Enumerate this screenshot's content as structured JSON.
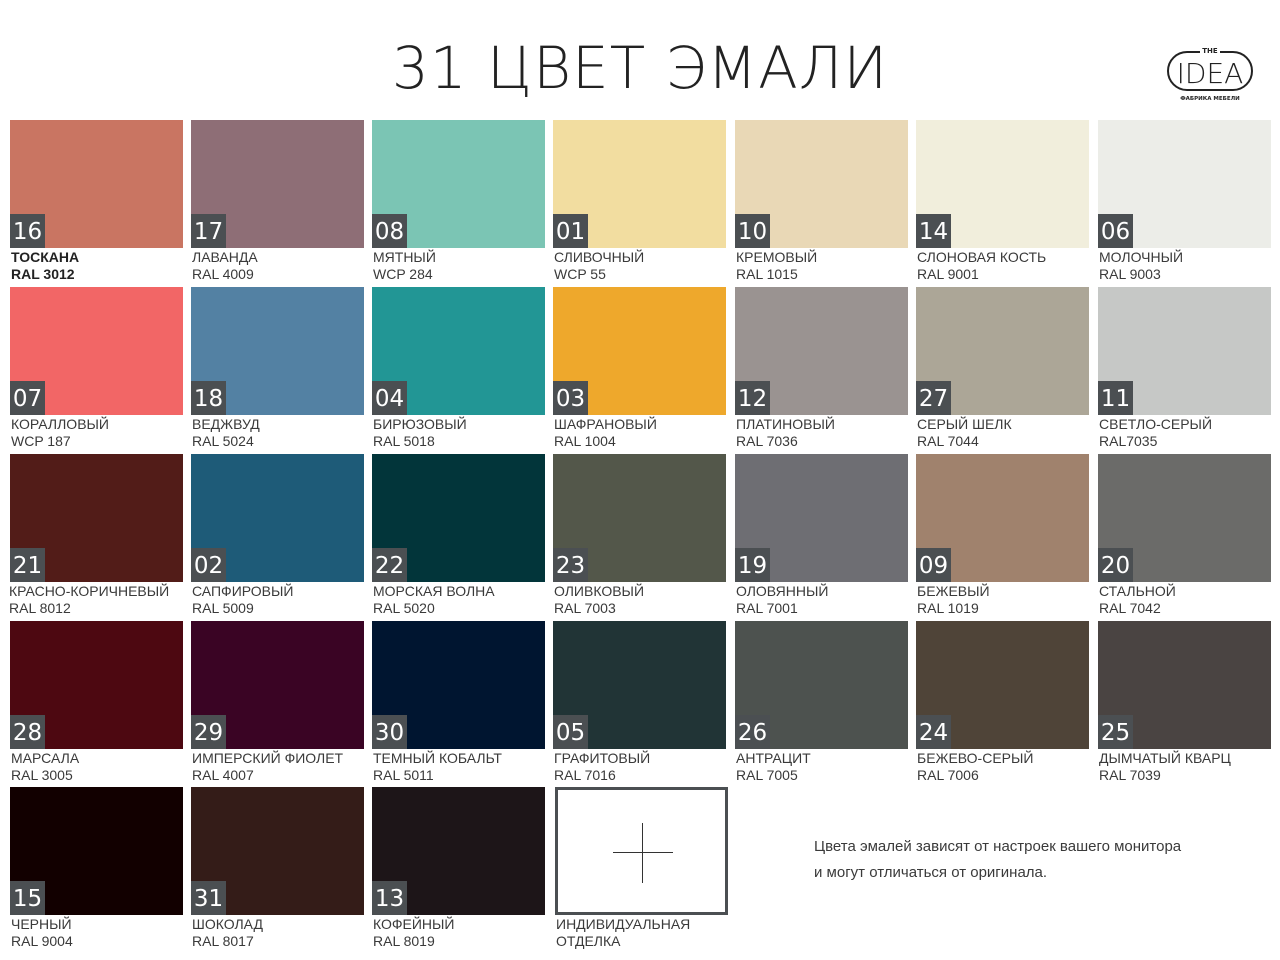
{
  "title": "31 ЦВЕТ ЭМАЛИ",
  "logo": {
    "top": "THE",
    "main": "IDEA",
    "sub": "ФАБРИКА МЕБЕЛИ"
  },
  "swatches": [
    {
      "num": "16",
      "name": "ТОСКАНА",
      "code": "RAL 3012",
      "color": "#c97562"
    },
    {
      "num": "17",
      "name": "ЛАВАНДА",
      "code": "RAL 4009",
      "color": "#8e6e76"
    },
    {
      "num": "08",
      "name": "МЯТНЫЙ",
      "code": "WCP 284",
      "color": "#7bc5b4"
    },
    {
      "num": "01",
      "name": "СЛИВОЧНЫЙ",
      "code": "WCP 55",
      "color": "#f2dda0"
    },
    {
      "num": "10",
      "name": "КРЕМОВЫЙ",
      "code": "RAL 1015",
      "color": "#e9d8b6"
    },
    {
      "num": "14",
      "name": "СЛОНОВАЯ КОСТЬ",
      "code": "RAL 9001",
      "color": "#f1eedc"
    },
    {
      "num": "06",
      "name": "МОЛОЧНЫЙ",
      "code": "RAL 9003",
      "color": "#ecede8"
    },
    {
      "num": "07",
      "name": "КОРАЛЛОВЫЙ",
      "code": "WCP 187",
      "color": "#f26666"
    },
    {
      "num": "18",
      "name": "ВЕДЖВУД",
      "code": "RAL 5024",
      "color": "#5381a3"
    },
    {
      "num": "04",
      "name": "БИРЮЗОВЫЙ",
      "code": "RAL 5018",
      "color": "#229695"
    },
    {
      "num": "03",
      "name": "ШАФРАНОВЫЙ",
      "code": "RAL 1004",
      "color": "#eea82c"
    },
    {
      "num": "12",
      "name": "ПЛАТИНОВЫЙ",
      "code": "RAL 7036",
      "color": "#9a9391"
    },
    {
      "num": "27",
      "name": "СЕРЫЙ ШЕЛК",
      "code": "RAL 7044",
      "color": "#aca697"
    },
    {
      "num": "11",
      "name": "СВЕТЛО-СЕРЫЙ",
      "code": "RAL7035",
      "color": "#c6c8c6"
    },
    {
      "num": "21",
      "name": "КРАСНО-КОРИЧНЕВЫЙ",
      "code": "RAL 8012",
      "color": "#521c18"
    },
    {
      "num": "02",
      "name": "САПФИРОВЫЙ",
      "code": "RAL 5009",
      "color": "#1e5b78"
    },
    {
      "num": "22",
      "name": "МОРСКАЯ ВОЛНА",
      "code": "RAL 5020",
      "color": "#02353a"
    },
    {
      "num": "23",
      "name": "ОЛИВКОВЫЙ",
      "code": "RAL 7003",
      "color": "#53574a"
    },
    {
      "num": "19",
      "name": "ОЛОВЯННЫЙ",
      "code": "RAL 7001",
      "color": "#6e6e73"
    },
    {
      "num": "09",
      "name": "БЕЖЕВЫЙ",
      "code": "RAL 1019",
      "color": "#a0826d"
    },
    {
      "num": "20",
      "name": "СТАЛЬНОЙ",
      "code": "RAL 7042",
      "color": "#6b6b69"
    },
    {
      "num": "28",
      "name": "МАРСАЛА",
      "code": "RAL 3005",
      "color": "#4d0811"
    },
    {
      "num": "29",
      "name": "ИМПЕРСКИЙ ФИОЛЕТ",
      "code": "RAL 4007",
      "color": "#3a0424"
    },
    {
      "num": "30",
      "name": "ТЕМНЫЙ КОБАЛЬТ",
      "code": "RAL 5011",
      "color": "#001530"
    },
    {
      "num": "05",
      "name": "ГРАФИТОВЫЙ",
      "code": "RAL 7016",
      "color": "#213436"
    },
    {
      "num": "26",
      "name": "АНТРАЦИТ",
      "code": "RAL 7005",
      "color": "#4d524f"
    },
    {
      "num": "24",
      "name": "БЕЖЕВО-СЕРЫЙ",
      "code": "RAL 7006",
      "color": "#4f4438"
    },
    {
      "num": "25",
      "name": "ДЫМЧАТЫЙ КВАРЦ",
      "code": "RAL 7039",
      "color": "#4a4442"
    },
    {
      "num": "15",
      "name": "ЧЕРНЫЙ",
      "code": "RAL 9004",
      "color": "#120000"
    },
    {
      "num": "31",
      "name": "ШОКОЛАД",
      "code": "RAL 8017",
      "color": "#341c18"
    },
    {
      "num": "13",
      "name": "КОФЕЙНЫЙ",
      "code": "RAL 8019",
      "color": "#1d1518"
    }
  ],
  "custom": {
    "line1": "ИНДИВИДУАЛЬНАЯ",
    "line2": "ОТДЕЛКА"
  },
  "note": {
    "line1": "Цвета эмалей зависят от настроек  вашего монитора",
    "line2": "и могут отличаться  от оригинала."
  }
}
